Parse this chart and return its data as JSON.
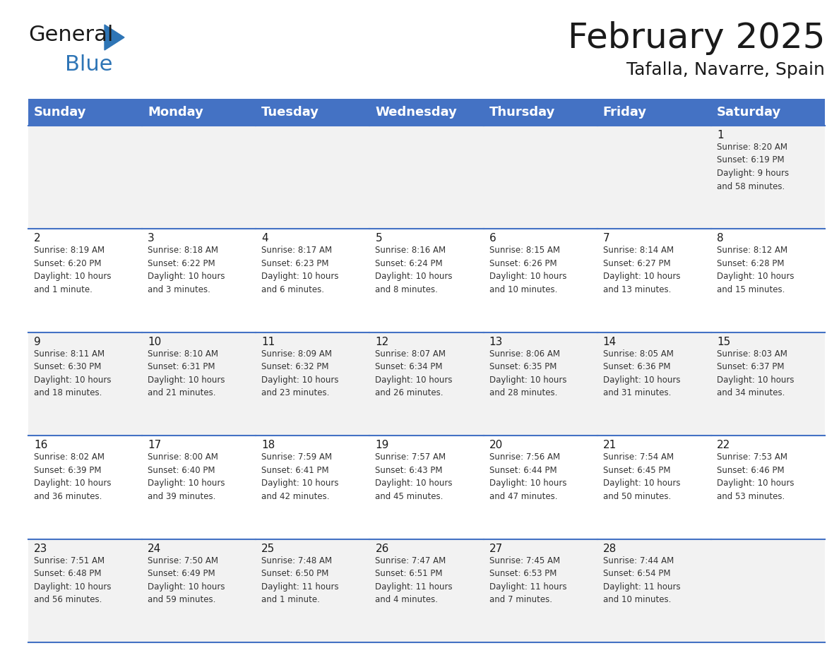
{
  "title": "February 2025",
  "subtitle": "Tafalla, Navarre, Spain",
  "header_bg": "#4472C4",
  "header_text_color": "#FFFFFF",
  "cell_bg_odd": "#F2F2F2",
  "cell_bg_even": "#FFFFFF",
  "grid_line_color": "#4472C4",
  "day_headers": [
    "Sunday",
    "Monday",
    "Tuesday",
    "Wednesday",
    "Thursday",
    "Friday",
    "Saturday"
  ],
  "logo_color1": "#1a1a1a",
  "logo_color2": "#2E75B6",
  "logo_triangle_color": "#2E75B6",
  "title_fontsize": 36,
  "subtitle_fontsize": 18,
  "header_fontsize": 13,
  "cell_day_fontsize": 11,
  "cell_info_fontsize": 8.5,
  "weeks": [
    [
      {
        "day": null,
        "info": null
      },
      {
        "day": null,
        "info": null
      },
      {
        "day": null,
        "info": null
      },
      {
        "day": null,
        "info": null
      },
      {
        "day": null,
        "info": null
      },
      {
        "day": null,
        "info": null
      },
      {
        "day": "1",
        "info": "Sunrise: 8:20 AM\nSunset: 6:19 PM\nDaylight: 9 hours\nand 58 minutes."
      }
    ],
    [
      {
        "day": "2",
        "info": "Sunrise: 8:19 AM\nSunset: 6:20 PM\nDaylight: 10 hours\nand 1 minute."
      },
      {
        "day": "3",
        "info": "Sunrise: 8:18 AM\nSunset: 6:22 PM\nDaylight: 10 hours\nand 3 minutes."
      },
      {
        "day": "4",
        "info": "Sunrise: 8:17 AM\nSunset: 6:23 PM\nDaylight: 10 hours\nand 6 minutes."
      },
      {
        "day": "5",
        "info": "Sunrise: 8:16 AM\nSunset: 6:24 PM\nDaylight: 10 hours\nand 8 minutes."
      },
      {
        "day": "6",
        "info": "Sunrise: 8:15 AM\nSunset: 6:26 PM\nDaylight: 10 hours\nand 10 minutes."
      },
      {
        "day": "7",
        "info": "Sunrise: 8:14 AM\nSunset: 6:27 PM\nDaylight: 10 hours\nand 13 minutes."
      },
      {
        "day": "8",
        "info": "Sunrise: 8:12 AM\nSunset: 6:28 PM\nDaylight: 10 hours\nand 15 minutes."
      }
    ],
    [
      {
        "day": "9",
        "info": "Sunrise: 8:11 AM\nSunset: 6:30 PM\nDaylight: 10 hours\nand 18 minutes."
      },
      {
        "day": "10",
        "info": "Sunrise: 8:10 AM\nSunset: 6:31 PM\nDaylight: 10 hours\nand 21 minutes."
      },
      {
        "day": "11",
        "info": "Sunrise: 8:09 AM\nSunset: 6:32 PM\nDaylight: 10 hours\nand 23 minutes."
      },
      {
        "day": "12",
        "info": "Sunrise: 8:07 AM\nSunset: 6:34 PM\nDaylight: 10 hours\nand 26 minutes."
      },
      {
        "day": "13",
        "info": "Sunrise: 8:06 AM\nSunset: 6:35 PM\nDaylight: 10 hours\nand 28 minutes."
      },
      {
        "day": "14",
        "info": "Sunrise: 8:05 AM\nSunset: 6:36 PM\nDaylight: 10 hours\nand 31 minutes."
      },
      {
        "day": "15",
        "info": "Sunrise: 8:03 AM\nSunset: 6:37 PM\nDaylight: 10 hours\nand 34 minutes."
      }
    ],
    [
      {
        "day": "16",
        "info": "Sunrise: 8:02 AM\nSunset: 6:39 PM\nDaylight: 10 hours\nand 36 minutes."
      },
      {
        "day": "17",
        "info": "Sunrise: 8:00 AM\nSunset: 6:40 PM\nDaylight: 10 hours\nand 39 minutes."
      },
      {
        "day": "18",
        "info": "Sunrise: 7:59 AM\nSunset: 6:41 PM\nDaylight: 10 hours\nand 42 minutes."
      },
      {
        "day": "19",
        "info": "Sunrise: 7:57 AM\nSunset: 6:43 PM\nDaylight: 10 hours\nand 45 minutes."
      },
      {
        "day": "20",
        "info": "Sunrise: 7:56 AM\nSunset: 6:44 PM\nDaylight: 10 hours\nand 47 minutes."
      },
      {
        "day": "21",
        "info": "Sunrise: 7:54 AM\nSunset: 6:45 PM\nDaylight: 10 hours\nand 50 minutes."
      },
      {
        "day": "22",
        "info": "Sunrise: 7:53 AM\nSunset: 6:46 PM\nDaylight: 10 hours\nand 53 minutes."
      }
    ],
    [
      {
        "day": "23",
        "info": "Sunrise: 7:51 AM\nSunset: 6:48 PM\nDaylight: 10 hours\nand 56 minutes."
      },
      {
        "day": "24",
        "info": "Sunrise: 7:50 AM\nSunset: 6:49 PM\nDaylight: 10 hours\nand 59 minutes."
      },
      {
        "day": "25",
        "info": "Sunrise: 7:48 AM\nSunset: 6:50 PM\nDaylight: 11 hours\nand 1 minute."
      },
      {
        "day": "26",
        "info": "Sunrise: 7:47 AM\nSunset: 6:51 PM\nDaylight: 11 hours\nand 4 minutes."
      },
      {
        "day": "27",
        "info": "Sunrise: 7:45 AM\nSunset: 6:53 PM\nDaylight: 11 hours\nand 7 minutes."
      },
      {
        "day": "28",
        "info": "Sunrise: 7:44 AM\nSunset: 6:54 PM\nDaylight: 11 hours\nand 10 minutes."
      },
      {
        "day": null,
        "info": null
      }
    ]
  ]
}
